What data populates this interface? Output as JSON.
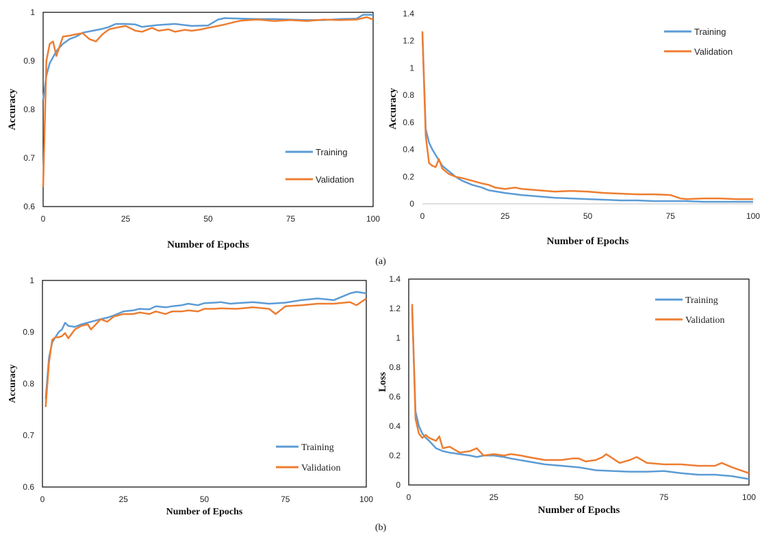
{
  "captions": [
    "(a)",
    "(b)"
  ],
  "colors": {
    "training": "#5b9bd5",
    "validation": "#ed7d31"
  },
  "chart_data": [
    {
      "type": "line",
      "xlabel": "Number of Epochs",
      "ylabel": "Accuracy",
      "xlim": [
        0,
        100
      ],
      "ylim": [
        0.6,
        1.0
      ],
      "xticks": [
        0,
        25,
        50,
        75,
        100
      ],
      "yticks": [
        "0.6",
        "0.7",
        "0.8",
        "0.9",
        "1"
      ],
      "legend": "bottom-right",
      "series": [
        {
          "name": "Training",
          "x": [
            0,
            1,
            2,
            4,
            6,
            8,
            10,
            12,
            15,
            18,
            20,
            22,
            25,
            28,
            30,
            35,
            40,
            45,
            50,
            53,
            55,
            60,
            65,
            70,
            75,
            80,
            85,
            90,
            95,
            97,
            100
          ],
          "values": [
            0.82,
            0.87,
            0.895,
            0.92,
            0.935,
            0.945,
            0.95,
            0.958,
            0.962,
            0.966,
            0.97,
            0.976,
            0.976,
            0.975,
            0.97,
            0.974,
            0.976,
            0.972,
            0.973,
            0.985,
            0.988,
            0.987,
            0.986,
            0.986,
            0.985,
            0.984,
            0.984,
            0.986,
            0.987,
            0.995,
            0.995
          ]
        },
        {
          "name": "Validation",
          "x": [
            0,
            1,
            2,
            3,
            4,
            5,
            6,
            8,
            10,
            12,
            14,
            16,
            18,
            20,
            22,
            25,
            28,
            30,
            33,
            35,
            38,
            40,
            43,
            45,
            48,
            50,
            53,
            55,
            58,
            60,
            65,
            70,
            75,
            80,
            85,
            90,
            95,
            98,
            100
          ],
          "values": [
            0.64,
            0.9,
            0.935,
            0.94,
            0.91,
            0.93,
            0.95,
            0.952,
            0.955,
            0.957,
            0.945,
            0.94,
            0.955,
            0.965,
            0.968,
            0.972,
            0.962,
            0.96,
            0.968,
            0.962,
            0.965,
            0.96,
            0.964,
            0.962,
            0.965,
            0.968,
            0.972,
            0.975,
            0.98,
            0.983,
            0.985,
            0.982,
            0.984,
            0.982,
            0.985,
            0.984,
            0.985,
            0.99,
            0.985
          ]
        }
      ]
    },
    {
      "type": "line",
      "xlabel": "Number of Epochs",
      "ylabel": "Accuracy",
      "xlim": [
        0,
        100
      ],
      "ylim": [
        0,
        1.4
      ],
      "xticks": [
        0,
        25,
        50,
        75,
        100
      ],
      "yticks": [
        "0",
        "0.2",
        "0.4",
        "0.6",
        "0.8",
        "1",
        "1.2",
        "1.4"
      ],
      "legend": "top-right",
      "series": [
        {
          "name": "Training",
          "x": [
            0,
            1,
            2,
            3,
            4,
            5,
            6,
            8,
            10,
            12,
            15,
            18,
            20,
            25,
            30,
            35,
            40,
            45,
            50,
            55,
            60,
            65,
            70,
            75,
            80,
            85,
            90,
            95,
            100
          ],
          "values": [
            1.25,
            0.55,
            0.45,
            0.4,
            0.36,
            0.32,
            0.28,
            0.24,
            0.2,
            0.17,
            0.14,
            0.12,
            0.1,
            0.08,
            0.065,
            0.055,
            0.045,
            0.04,
            0.035,
            0.03,
            0.025,
            0.025,
            0.02,
            0.02,
            0.02,
            0.015,
            0.015,
            0.015,
            0.015
          ]
        },
        {
          "name": "Validation",
          "x": [
            0,
            1,
            2,
            3,
            4,
            5,
            6,
            8,
            10,
            12,
            15,
            18,
            20,
            22,
            25,
            28,
            30,
            35,
            40,
            45,
            50,
            55,
            60,
            65,
            70,
            75,
            78,
            80,
            85,
            90,
            95,
            100
          ],
          "values": [
            1.27,
            0.5,
            0.3,
            0.28,
            0.27,
            0.33,
            0.26,
            0.22,
            0.2,
            0.19,
            0.17,
            0.15,
            0.14,
            0.12,
            0.11,
            0.12,
            0.11,
            0.1,
            0.09,
            0.095,
            0.09,
            0.08,
            0.075,
            0.07,
            0.07,
            0.065,
            0.04,
            0.035,
            0.04,
            0.04,
            0.035,
            0.035
          ]
        }
      ]
    },
    {
      "type": "line",
      "xlabel": "Number of Epochs",
      "ylabel": "Accuracy",
      "xlim": [
        0,
        100
      ],
      "ylim": [
        0.6,
        1.0
      ],
      "xticks": [
        0,
        25,
        50,
        75,
        100
      ],
      "yticks": [
        "0.6",
        "0.7",
        "0.8",
        "0.9",
        "1"
      ],
      "legend": "bottom-right",
      "series": [
        {
          "name": "Training",
          "x": [
            1,
            2,
            3,
            4,
            5,
            6,
            7,
            8,
            10,
            12,
            15,
            18,
            20,
            22,
            25,
            28,
            30,
            33,
            35,
            38,
            40,
            43,
            45,
            48,
            50,
            53,
            55,
            58,
            60,
            65,
            70,
            75,
            80,
            85,
            90,
            95,
            97,
            100
          ],
          "values": [
            0.77,
            0.85,
            0.88,
            0.89,
            0.9,
            0.905,
            0.918,
            0.912,
            0.91,
            0.915,
            0.92,
            0.925,
            0.928,
            0.932,
            0.94,
            0.942,
            0.945,
            0.944,
            0.95,
            0.948,
            0.95,
            0.952,
            0.955,
            0.952,
            0.956,
            0.957,
            0.958,
            0.955,
            0.956,
            0.958,
            0.955,
            0.957,
            0.962,
            0.965,
            0.962,
            0.975,
            0.978,
            0.975
          ]
        },
        {
          "name": "Validation",
          "x": [
            1,
            2,
            3,
            4,
            5,
            6,
            7,
            8,
            10,
            12,
            14,
            15,
            18,
            20,
            22,
            25,
            28,
            30,
            33,
            35,
            38,
            40,
            43,
            45,
            48,
            50,
            53,
            55,
            60,
            65,
            70,
            72,
            75,
            80,
            85,
            90,
            95,
            97,
            100
          ],
          "values": [
            0.755,
            0.84,
            0.885,
            0.89,
            0.89,
            0.892,
            0.898,
            0.888,
            0.905,
            0.912,
            0.915,
            0.905,
            0.925,
            0.92,
            0.93,
            0.935,
            0.935,
            0.938,
            0.935,
            0.94,
            0.935,
            0.94,
            0.94,
            0.942,
            0.94,
            0.945,
            0.945,
            0.946,
            0.945,
            0.948,
            0.945,
            0.935,
            0.95,
            0.952,
            0.955,
            0.955,
            0.958,
            0.952,
            0.965
          ]
        }
      ]
    },
    {
      "type": "line",
      "xlabel": "Number of Epochs",
      "ylabel": "Loss",
      "xlim": [
        0,
        100
      ],
      "ylim": [
        0,
        1.4
      ],
      "xticks": [
        0,
        25,
        50,
        75,
        100
      ],
      "yticks": [
        "0",
        "0.2",
        "0.4",
        "0.6",
        "0.8",
        "1",
        "1.2",
        "1.4"
      ],
      "legend": "top-right",
      "series": [
        {
          "name": "Training",
          "x": [
            1,
            2,
            3,
            4,
            5,
            6,
            8,
            10,
            12,
            15,
            18,
            20,
            22,
            25,
            28,
            30,
            35,
            40,
            45,
            50,
            55,
            60,
            65,
            70,
            75,
            80,
            85,
            90,
            95,
            100
          ],
          "values": [
            1.2,
            0.5,
            0.4,
            0.35,
            0.32,
            0.3,
            0.25,
            0.23,
            0.22,
            0.21,
            0.2,
            0.19,
            0.2,
            0.2,
            0.19,
            0.18,
            0.16,
            0.14,
            0.13,
            0.12,
            0.1,
            0.095,
            0.09,
            0.09,
            0.095,
            0.08,
            0.07,
            0.07,
            0.06,
            0.04
          ]
        },
        {
          "name": "Validation",
          "x": [
            1,
            2,
            3,
            4,
            5,
            6,
            8,
            9,
            10,
            12,
            15,
            18,
            20,
            22,
            25,
            28,
            30,
            33,
            35,
            40,
            45,
            48,
            50,
            52,
            55,
            57,
            58,
            60,
            62,
            65,
            67,
            70,
            75,
            80,
            85,
            90,
            92,
            95,
            100
          ],
          "values": [
            1.23,
            0.45,
            0.35,
            0.32,
            0.34,
            0.32,
            0.3,
            0.33,
            0.25,
            0.26,
            0.22,
            0.23,
            0.25,
            0.2,
            0.21,
            0.2,
            0.21,
            0.2,
            0.19,
            0.17,
            0.17,
            0.18,
            0.18,
            0.16,
            0.17,
            0.19,
            0.21,
            0.18,
            0.15,
            0.17,
            0.19,
            0.15,
            0.14,
            0.14,
            0.13,
            0.13,
            0.15,
            0.12,
            0.08
          ]
        }
      ]
    }
  ]
}
